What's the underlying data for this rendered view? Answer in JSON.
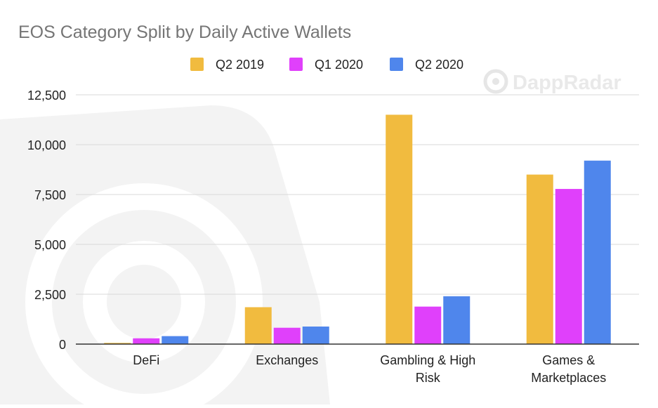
{
  "watermark": {
    "text": "DappRadar"
  },
  "chart_data": {
    "type": "bar",
    "title": "EOS Category Split by Daily Active Wallets",
    "xlabel": "",
    "ylabel": "",
    "categories": [
      [
        "DeFi"
      ],
      [
        "Exchanges"
      ],
      [
        "Gambling & High",
        "Risk"
      ],
      [
        "Games &",
        "Marketplaces"
      ]
    ],
    "series": [
      {
        "name": "Q2 2019",
        "color": "#F1BB3F",
        "values": [
          60,
          1850,
          11500,
          8500
        ]
      },
      {
        "name": "Q1 2020",
        "color": "#E040FB",
        "values": [
          290,
          820,
          1880,
          7780
        ]
      },
      {
        "name": "Q2 2020",
        "color": "#4F86EC",
        "values": [
          400,
          880,
          2400,
          9200
        ]
      }
    ],
    "y_ticks": [
      "0",
      "2,500",
      "5,000",
      "7,500",
      "10,000",
      "12,500"
    ],
    "ylim": [
      0,
      12500
    ],
    "grid": true,
    "legend_position": "top-center",
    "colors": {
      "title": "#757575",
      "axis_text": "#222222",
      "grid": "#d9d9d9",
      "baseline": "#333333"
    }
  }
}
